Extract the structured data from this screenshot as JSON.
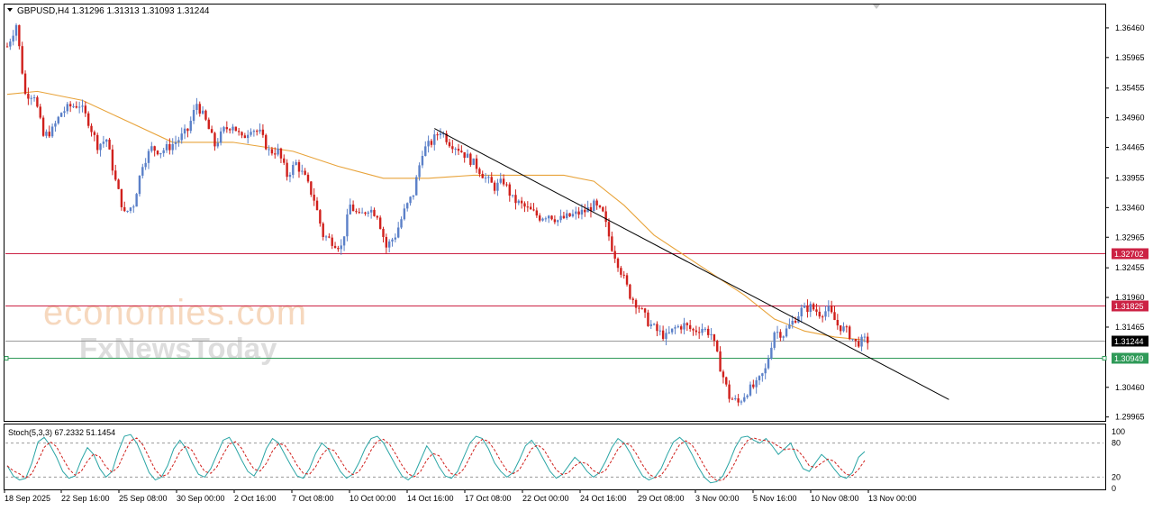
{
  "chart_data": {
    "type": "candlestick",
    "title": "GBPUSD,H4  1.31296 1.31313 1.31093 1.31244",
    "ohlc_header": {
      "symbol": "GBPUSD",
      "timeframe": "H4",
      "open": 1.31296,
      "high": 1.31313,
      "low": 1.31093,
      "close": 1.31244
    },
    "price_axis_ticks": [
      "1.36460",
      "1.35965",
      "1.35455",
      "1.34960",
      "1.34465",
      "1.33955",
      "1.33460",
      "1.32965",
      "1.32455",
      "1.31960",
      "1.31465",
      "1.30460",
      "1.29965"
    ],
    "time_axis_ticks": [
      "18 Sep 2025",
      "22 Sep 16:00",
      "25 Sep 08:00",
      "30 Sep 00:00",
      "2 Oct 16:00",
      "7 Oct 08:00",
      "10 Oct 00:00",
      "14 Oct 16:00",
      "17 Oct 08:00",
      "22 Oct 00:00",
      "24 Oct 16:00",
      "29 Oct 08:00",
      "3 Nov 00:00",
      "5 Nov 16:00",
      "10 Nov 08:00",
      "13 Nov 00:00"
    ],
    "ylim": [
      1.299,
      1.3685
    ],
    "price_path": [
      [
        0,
        1.3615
      ],
      [
        3,
        1.3652
      ],
      [
        6,
        1.3535
      ],
      [
        9,
        1.3535
      ],
      [
        12,
        1.3465
      ],
      [
        15,
        1.3475
      ],
      [
        18,
        1.3505
      ],
      [
        21,
        1.3515
      ],
      [
        24,
        1.3518
      ],
      [
        27,
        1.349
      ],
      [
        30,
        1.345
      ],
      [
        33,
        1.346
      ],
      [
        36,
        1.339
      ],
      [
        39,
        1.3335
      ],
      [
        42,
        1.3352
      ],
      [
        45,
        1.342
      ],
      [
        48,
        1.3445
      ],
      [
        51,
        1.344
      ],
      [
        54,
        1.3448
      ],
      [
        57,
        1.346
      ],
      [
        60,
        1.3475
      ],
      [
        63,
        1.352
      ],
      [
        66,
        1.349
      ],
      [
        69,
        1.345
      ],
      [
        72,
        1.3475
      ],
      [
        75,
        1.3485
      ],
      [
        78,
        1.346
      ],
      [
        81,
        1.348
      ],
      [
        84,
        1.347
      ],
      [
        87,
        1.344
      ],
      [
        90,
        1.344
      ],
      [
        93,
        1.34
      ],
      [
        96,
        1.342
      ],
      [
        99,
        1.3395
      ],
      [
        102,
        1.336
      ],
      [
        105,
        1.33
      ],
      [
        108,
        1.329
      ],
      [
        111,
        1.328
      ],
      [
        114,
        1.335
      ],
      [
        117,
        1.333
      ],
      [
        120,
        1.3345
      ],
      [
        123,
        1.3335
      ],
      [
        126,
        1.328
      ],
      [
        129,
        1.33
      ],
      [
        132,
        1.334
      ],
      [
        135,
        1.337
      ],
      [
        138,
        1.344
      ],
      [
        141,
        1.3455
      ],
      [
        144,
        1.3475
      ],
      [
        147,
        1.3455
      ],
      [
        150,
        1.3445
      ],
      [
        153,
        1.343
      ],
      [
        156,
        1.3415
      ],
      [
        159,
        1.3395
      ],
      [
        162,
        1.338
      ],
      [
        165,
        1.339
      ],
      [
        168,
        1.336
      ],
      [
        171,
        1.335
      ],
      [
        174,
        1.334
      ],
      [
        177,
        1.333
      ],
      [
        180,
        1.3335
      ],
      [
        183,
        1.3325
      ],
      [
        186,
        1.333
      ],
      [
        189,
        1.3335
      ],
      [
        192,
        1.334
      ],
      [
        195,
        1.335
      ],
      [
        198,
        1.3335
      ],
      [
        201,
        1.328
      ],
      [
        204,
        1.324
      ],
      [
        207,
        1.32
      ],
      [
        210,
        1.318
      ],
      [
        213,
        1.3155
      ],
      [
        216,
        1.314
      ],
      [
        219,
        1.313
      ],
      [
        222,
        1.3145
      ],
      [
        225,
        1.315
      ],
      [
        228,
        1.314
      ],
      [
        231,
        1.3145
      ],
      [
        234,
        1.3135
      ],
      [
        237,
        1.308
      ],
      [
        240,
        1.303
      ],
      [
        243,
        1.302
      ],
      [
        246,
        1.304
      ],
      [
        249,
        1.305
      ],
      [
        252,
        1.3075
      ],
      [
        255,
        1.314
      ],
      [
        258,
        1.3135
      ],
      [
        261,
        1.3155
      ],
      [
        264,
        1.3175
      ],
      [
        267,
        1.318
      ],
      [
        270,
        1.317
      ],
      [
        273,
        1.3175
      ],
      [
        276,
        1.315
      ],
      [
        279,
        1.314
      ],
      [
        282,
        1.312
      ],
      [
        285,
        1.3124
      ]
    ],
    "series": [
      {
        "type": "moving_average",
        "color": "#e8a33a",
        "values": [
          [
            0,
            1.3535
          ],
          [
            10,
            1.354
          ],
          [
            25,
            1.3525
          ],
          [
            40,
            1.349
          ],
          [
            55,
            1.3455
          ],
          [
            75,
            1.3455
          ],
          [
            95,
            1.344
          ],
          [
            110,
            1.3415
          ],
          [
            125,
            1.3395
          ],
          [
            140,
            1.3395
          ],
          [
            155,
            1.34
          ],
          [
            170,
            1.34
          ],
          [
            185,
            1.34
          ],
          [
            195,
            1.339
          ],
          [
            205,
            1.335
          ],
          [
            215,
            1.33
          ],
          [
            230,
            1.325
          ],
          [
            245,
            1.32
          ],
          [
            255,
            1.316
          ],
          [
            265,
            1.314
          ],
          [
            275,
            1.313
          ],
          [
            285,
            1.3125
          ]
        ]
      },
      {
        "type": "trendline",
        "color": "#000000",
        "values": [
          [
            142,
            1.3478
          ],
          [
            280,
            1.3113
          ]
        ]
      }
    ],
    "horizontal_lines": [
      {
        "price": 1.32702,
        "label": "1.32702",
        "color": "#cc2244"
      },
      {
        "price": 1.31825,
        "label": "1.31825",
        "color": "#cc2244"
      },
      {
        "price": 1.31244,
        "label": "1.31244",
        "color": "#9a9a9a",
        "current": true
      },
      {
        "price": 1.30949,
        "label": "1.30949",
        "color": "#2f9a58"
      }
    ],
    "up_color": "#5b80c8",
    "down_color": "#d0201c",
    "grid": false,
    "oscillator": {
      "title": "Stoch(5,3,3) 67.2332 51.1454",
      "main": 67.2332,
      "signal": 51.1454,
      "levels": [
        20,
        80
      ],
      "ticks": [
        "100",
        "80",
        "20",
        "0"
      ],
      "main_color": "#2aa5a5",
      "signal_color": "#d0201c",
      "values": [
        40,
        22,
        15,
        18,
        45,
        82,
        90,
        75,
        55,
        30,
        18,
        22,
        50,
        72,
        60,
        35,
        20,
        30,
        65,
        92,
        95,
        80,
        55,
        28,
        15,
        20,
        40,
        70,
        85,
        70,
        45,
        25,
        20,
        35,
        60,
        85,
        90,
        72,
        50,
        30,
        22,
        40,
        70,
        88,
        80,
        60,
        40,
        22,
        18,
        35,
        62,
        80,
        70,
        50,
        30,
        18,
        25,
        45,
        70,
        88,
        92,
        80,
        60,
        40,
        22,
        15,
        25,
        50,
        75,
        60,
        38,
        22,
        18,
        30,
        55,
        80,
        92,
        88,
        70,
        45,
        30,
        20,
        28,
        50,
        75,
        85,
        70,
        50,
        30,
        18,
        25,
        40,
        55,
        45,
        30,
        20,
        28,
        48,
        72,
        88,
        80,
        62,
        40,
        22,
        15,
        20,
        35,
        60,
        82,
        90,
        80,
        60,
        38,
        20,
        10,
        12,
        22,
        45,
        72,
        90,
        92,
        85,
        80,
        88,
        75,
        60,
        70,
        80,
        55,
        35,
        30,
        45,
        60,
        50,
        35,
        22,
        18,
        28,
        55,
        65
      ]
    }
  }
}
